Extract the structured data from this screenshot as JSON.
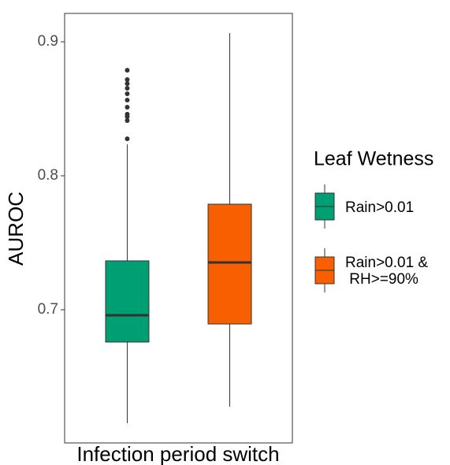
{
  "chart_data": {
    "type": "box",
    "xlabel": "Infection period switch",
    "ylabel": "AUROC",
    "legend_title": "Leaf Wetness",
    "ylim": [
      0.6006,
      0.9212
    ],
    "yticks": [
      0.7,
      0.8,
      0.9
    ],
    "series": [
      {
        "name": "Rain>0.01",
        "color": "#009E73",
        "whisker_low": 0.6153,
        "q1": 0.6759,
        "median": 0.6959,
        "q3": 0.7365,
        "whisker_high": 0.8235,
        "outliers": [
          0.8276,
          0.8412,
          0.8441,
          0.846,
          0.8512,
          0.8565,
          0.8612,
          0.8653,
          0.8688,
          0.8718,
          0.8788
        ]
      },
      {
        "name": "Rain>0.01 &\n RH>=90%",
        "color": "#F75F00",
        "whisker_low": 0.6276,
        "q1": 0.6894,
        "median": 0.7353,
        "q3": 0.7788,
        "whisker_high": 0.9065,
        "outliers": []
      }
    ]
  }
}
